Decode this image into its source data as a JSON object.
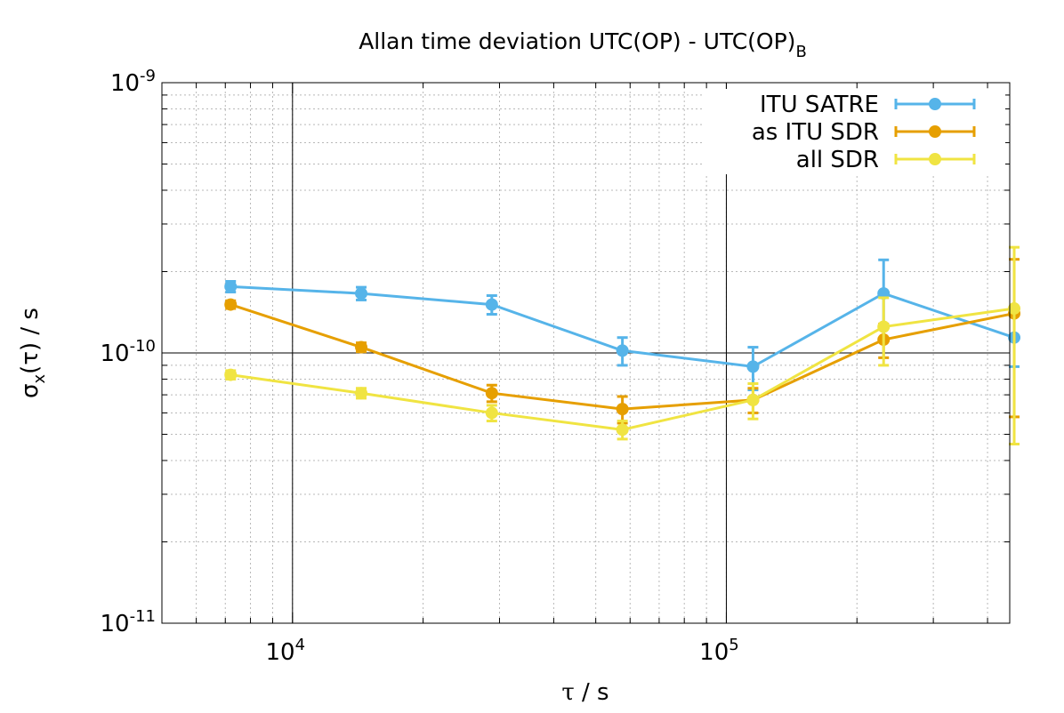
{
  "chart_data": {
    "type": "line",
    "title": "Allan time deviation UTC(OP) - UTC(OP)",
    "title_subscript": "B",
    "xlabel_symbol": "τ",
    "xlabel_unit": " / s",
    "ylabel_sigma": "σ",
    "ylabel_sub": "x",
    "ylabel_rest": "(τ) / s",
    "x_scale": "log",
    "y_scale": "log",
    "xlim": [
      5000,
      450000
    ],
    "ylim": [
      1e-11,
      1e-09
    ],
    "x_ticks": [
      {
        "value": 10000,
        "base": "10",
        "exp": "4"
      },
      {
        "value": 100000,
        "base": "10",
        "exp": "5"
      }
    ],
    "y_ticks": [
      {
        "value": 1e-09,
        "base": "10",
        "exp": "-9"
      },
      {
        "value": 1e-10,
        "base": "10",
        "exp": "-10"
      },
      {
        "value": 1e-11,
        "base": "10",
        "exp": "-11"
      }
    ],
    "grid": true,
    "legend_position": "top-right",
    "series": [
      {
        "name": "ITU SATRE",
        "color": "#56b4e9",
        "points": [
          {
            "x": 7200,
            "y": 1.76e-10,
            "err": 8e-12
          },
          {
            "x": 14400,
            "y": 1.66e-10,
            "err": 9e-12
          },
          {
            "x": 28800,
            "y": 1.51e-10,
            "err": 1.2e-11
          },
          {
            "x": 57600,
            "y": 1.02e-10,
            "err": 1.2e-11
          },
          {
            "x": 115200,
            "y": 8.9e-11,
            "err": 1.6e-11
          },
          {
            "x": 230400,
            "y": 1.66e-10,
            "err": 5.5e-11
          },
          {
            "x": 460800,
            "y": 1.14e-10,
            "err": 2.5e-11
          }
        ]
      },
      {
        "name": "as ITU SDR",
        "color": "#e69f00",
        "points": [
          {
            "x": 7200,
            "y": 1.51e-10,
            "err": 5e-12
          },
          {
            "x": 14400,
            "y": 1.05e-10,
            "err": 4e-12
          },
          {
            "x": 28800,
            "y": 7.1e-11,
            "err": 5e-12
          },
          {
            "x": 57600,
            "y": 6.2e-11,
            "err": 7e-12
          },
          {
            "x": 115200,
            "y": 6.7e-11,
            "err": 7e-12
          },
          {
            "x": 230400,
            "y": 1.12e-10,
            "err": 1.6e-11
          },
          {
            "x": 460800,
            "y": 1.4e-10,
            "err": 8.2e-11
          }
        ]
      },
      {
        "name": "all SDR",
        "color": "#f0e442",
        "points": [
          {
            "x": 7200,
            "y": 8.3e-11,
            "err": 3e-12
          },
          {
            "x": 14400,
            "y": 7.1e-11,
            "err": 3e-12
          },
          {
            "x": 28800,
            "y": 6e-11,
            "err": 4e-12
          },
          {
            "x": 57600,
            "y": 5.2e-11,
            "err": 4e-12
          },
          {
            "x": 115200,
            "y": 6.7e-11,
            "err": 1e-11
          },
          {
            "x": 230400,
            "y": 1.25e-10,
            "err": 3.5e-11
          },
          {
            "x": 460800,
            "y": 1.46e-10,
            "err": 1e-10
          }
        ]
      }
    ]
  }
}
